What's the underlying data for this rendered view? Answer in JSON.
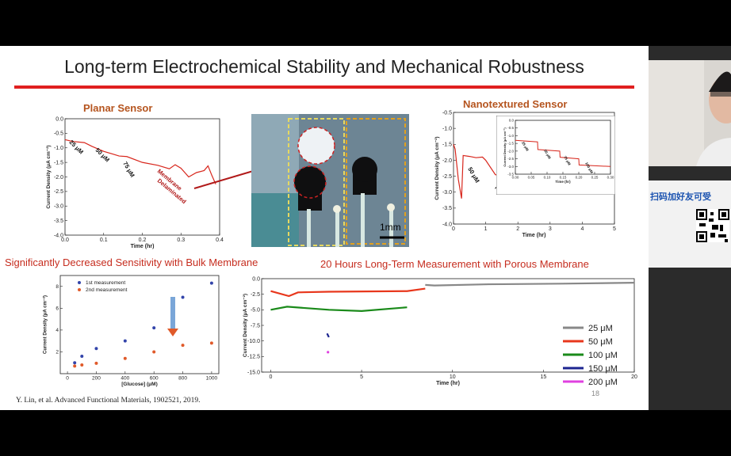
{
  "slide": {
    "title": "Long-term Electrochemical Stability and Mechanical Robustness",
    "planar_label": "Planar Sensor",
    "nano_label": "Nanotextured Sensor",
    "subtitle_left": "Significantly Decreased Sensitivity with Bulk Membrane",
    "subtitle_right": "20 Hours Long-Term Measurement with Porous Membrane",
    "citation": "Y. Lin, et al. Advanced Functional Materials, 1902521, 2019.",
    "page_number": "18",
    "photo_scale": "1mm"
  },
  "side_panel": {
    "qr_caption": "扫码加好友可受"
  },
  "colors": {
    "accent": "#e02020",
    "label": "#b5541e",
    "subtitle": "#c62d1f"
  },
  "chart_data": [
    {
      "type": "line",
      "name": "planar",
      "xlabel": "Time (hr)",
      "ylabel": "Current Density (μA cm⁻²)",
      "xlim": [
        0.0,
        0.4
      ],
      "ylim": [
        -4.0,
        0.0
      ],
      "xticks": [
        "0.0",
        "0.1",
        "0.2",
        "0.3",
        "0.4"
      ],
      "yticks": [
        "0.0",
        "-0.5",
        "-1.0",
        "-1.5",
        "-2.0",
        "-2.5",
        "-3.0",
        "-3.5",
        "-4.0"
      ],
      "x": [
        0.0,
        0.02,
        0.05,
        0.07,
        0.1,
        0.12,
        0.14,
        0.16,
        0.2,
        0.24,
        0.27,
        0.285,
        0.3,
        0.32,
        0.34,
        0.36,
        0.37,
        0.38,
        0.39
      ],
      "y": [
        -0.72,
        -0.78,
        -0.82,
        -0.95,
        -1.12,
        -1.2,
        -1.28,
        -1.3,
        -1.5,
        -1.6,
        -1.72,
        -1.58,
        -1.7,
        -2.0,
        -1.85,
        -1.78,
        -1.62,
        -1.95,
        -2.25
      ],
      "annotations": [
        "25 μM",
        "50 μM",
        "75 μM",
        "Membrane Delaminated"
      ]
    },
    {
      "type": "line",
      "name": "nanotextured",
      "xlabel": "Time (hr)",
      "ylabel": "Current Density (μA cm⁻²)",
      "xlim": [
        0,
        5
      ],
      "ylim": [
        -4.0,
        -0.5
      ],
      "xticks": [
        "0",
        "1",
        "2",
        "3",
        "4",
        "5"
      ],
      "yticks": [
        "-0.5",
        "-1.0",
        "-1.5",
        "-2.0",
        "-2.5",
        "-3.0",
        "-3.5",
        "-4.0"
      ],
      "x": [
        0,
        0.05,
        0.15,
        0.25,
        0.3,
        0.5,
        0.7,
        0.9,
        1.0,
        1.3,
        2,
        3,
        4,
        5
      ],
      "y": [
        -1.5,
        -1.65,
        -2.6,
        -3.2,
        -1.85,
        -1.88,
        -1.92,
        -1.9,
        -2.0,
        -2.45,
        -2.65,
        -2.85,
        -2.98,
        -3.05
      ],
      "annotations": [
        "50 μM",
        "100 μM"
      ]
    },
    {
      "type": "line",
      "name": "nanotextured-inset",
      "xlabel": "Time (hr)",
      "ylabel": "Current Density (μA cm⁻²)",
      "xlim": [
        0.0,
        0.3
      ],
      "ylim": [
        -3.5,
        0.0
      ],
      "xticks": [
        "0.00",
        "0.05",
        "0.10",
        "0.15",
        "0.20",
        "0.25",
        "0.30"
      ],
      "yticks": [
        "0.0",
        "-0.5",
        "-1.0",
        "-1.5",
        "-2.0",
        "-2.5",
        "-3.0",
        "-3.5"
      ],
      "x": [
        0.0,
        0.07,
        0.071,
        0.14,
        0.141,
        0.2,
        0.201,
        0.3
      ],
      "y": [
        -1.3,
        -1.4,
        -1.9,
        -2.0,
        -2.4,
        -2.5,
        -2.9,
        -3.0
      ],
      "annotations": [
        "25 μM",
        "50 μM",
        "75 μM",
        "100 μM"
      ]
    },
    {
      "type": "scatter",
      "name": "bulk-membrane",
      "xlabel": "[Glucose] (μM)",
      "ylabel": "Current Density (μA cm⁻²)",
      "xlim": [
        -50,
        1050
      ],
      "ylim": [
        0,
        9
      ],
      "xticks": [
        "0",
        "200",
        "400",
        "600",
        "800",
        "1000"
      ],
      "yticks": [
        "2",
        "4",
        "6",
        "8"
      ],
      "series": [
        {
          "name": "1st measurement",
          "color": "#3344aa",
          "x": [
            50,
            100,
            200,
            400,
            600,
            800,
            1000
          ],
          "y": [
            1.0,
            1.6,
            2.3,
            3.0,
            4.2,
            7.0,
            8.3
          ]
        },
        {
          "name": "2nd measurement",
          "color": "#e05a2a",
          "x": [
            50,
            100,
            200,
            400,
            600,
            800,
            1000
          ],
          "y": [
            0.7,
            0.8,
            0.95,
            1.4,
            2.0,
            2.6,
            2.8
          ]
        }
      ]
    },
    {
      "type": "line",
      "name": "long-term",
      "xlabel": "Time (hr)",
      "ylabel": "Current Density (μA cm⁻²)",
      "xlim": [
        -0.5,
        20
      ],
      "ylim": [
        -15.0,
        0.0
      ],
      "xticks": [
        "0",
        "5",
        "10",
        "15",
        "20"
      ],
      "yticks": [
        "0.0",
        "-2.5",
        "-5.0",
        "-7.5",
        "-10.0",
        "-12.5",
        "-15.0"
      ],
      "series": [
        {
          "name": "25 μM",
          "color": "#888888",
          "x": [
            8.5,
            9,
            12,
            16,
            20
          ],
          "y": [
            -1.0,
            -1.1,
            -0.9,
            -0.8,
            -0.65
          ]
        },
        {
          "name": "50 μM",
          "color": "#e8371c",
          "x": [
            0,
            1.0,
            1.5,
            3.2,
            7.5,
            8.5
          ],
          "y": [
            -2.0,
            -2.8,
            -2.2,
            -2.1,
            -2.0,
            -1.6
          ]
        },
        {
          "name": "100 μM",
          "color": "#1a8a1a",
          "x": [
            0,
            0.9,
            3.2,
            5,
            7.5
          ],
          "y": [
            -5.0,
            -4.5,
            -5.0,
            -5.2,
            -4.6
          ]
        },
        {
          "name": "150 μM",
          "color": "#1c2590",
          "x": [
            3.1,
            3.2
          ],
          "y": [
            -8.8,
            -9.4
          ]
        },
        {
          "name": "200 μM",
          "color": "#e040e0",
          "x": [
            3.15
          ],
          "y": [
            -11.8
          ]
        }
      ]
    }
  ]
}
